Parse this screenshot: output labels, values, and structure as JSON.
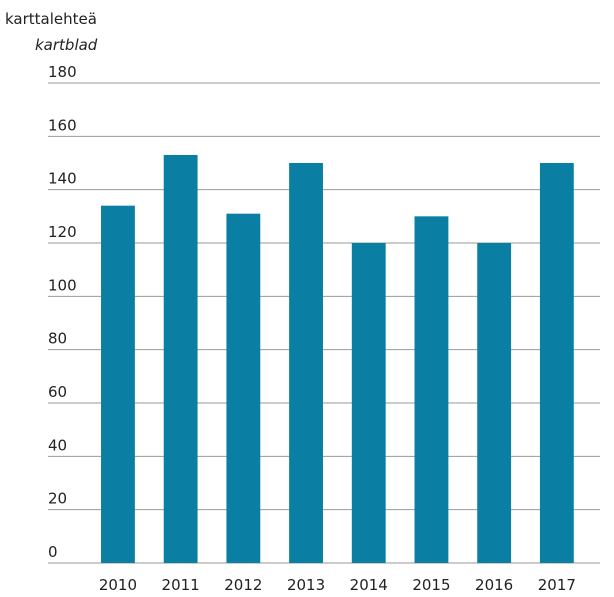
{
  "chart_data": {
    "type": "bar",
    "title": "karttalehteä",
    "subtitle": "kartblad",
    "categories": [
      "2010",
      "2011",
      "2012",
      "2013",
      "2014",
      "2015",
      "2016",
      "2017"
    ],
    "values": [
      134,
      153,
      131,
      150,
      120,
      130,
      120,
      150
    ],
    "color": "#0b7fa3",
    "ylim": [
      0,
      180
    ],
    "yticks": [
      0,
      20,
      40,
      60,
      80,
      100,
      120,
      140,
      160,
      180
    ],
    "grid": true
  }
}
